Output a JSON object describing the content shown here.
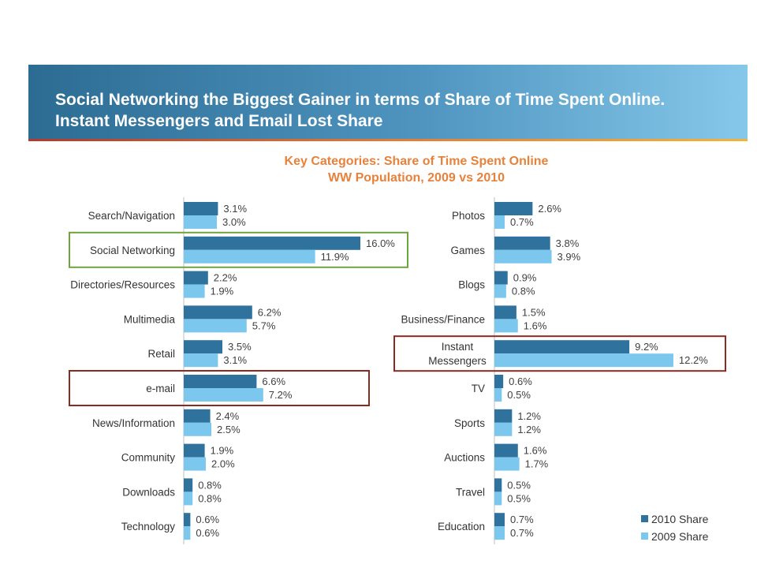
{
  "header": {
    "title_line_1": "Social Networking the Biggest Gainer in terms of Share of Time Spent Online.",
    "title_line_2": "Instant Messengers and Email Lost Share"
  },
  "colors": {
    "series_2010": "#2f729d",
    "series_2009": "#7cc7ee",
    "highlight_green": "#6ea43c",
    "highlight_red": "#8b2a20"
  },
  "chart_data": [
    {
      "type": "bar",
      "orientation": "horizontal",
      "title": "Key Categories: Share of Time Spent Online",
      "subtitle": "WW Population, 2009 vs 2010",
      "unit": "%",
      "categories": [
        "Search/Navigation",
        "Social Networking",
        "Directories/Resources",
        "Multimedia",
        "Retail",
        "e-mail",
        "News/Information",
        "Community",
        "Downloads",
        "Technology"
      ],
      "series": [
        {
          "name": "2010 Share",
          "values": [
            3.1,
            16.0,
            2.2,
            6.2,
            3.5,
            6.6,
            2.4,
            1.9,
            0.8,
            0.6
          ]
        },
        {
          "name": "2009 Share",
          "values": [
            3.0,
            11.9,
            1.9,
            5.7,
            3.1,
            7.2,
            2.5,
            2.0,
            0.8,
            0.6
          ]
        }
      ],
      "highlighted": [
        {
          "category": "Social Networking",
          "color": "green"
        },
        {
          "category": "e-mail",
          "color": "red"
        }
      ]
    },
    {
      "type": "bar",
      "orientation": "horizontal",
      "unit": "%",
      "categories": [
        "Photos",
        "Games",
        "Blogs",
        "Business/Finance",
        "Instant Messengers",
        "TV",
        "Sports",
        "Auctions",
        "Travel",
        "Education"
      ],
      "series": [
        {
          "name": "2010 Share",
          "values": [
            2.6,
            3.8,
            0.9,
            1.5,
            9.2,
            0.6,
            1.2,
            1.6,
            0.5,
            0.7
          ]
        },
        {
          "name": "2009 Share",
          "values": [
            0.7,
            3.9,
            0.8,
            1.6,
            12.2,
            0.5,
            1.2,
            1.7,
            0.5,
            0.7
          ]
        }
      ],
      "highlighted": [
        {
          "category": "Instant Messengers",
          "color": "red"
        }
      ],
      "legend": {
        "position": "bottom-right",
        "entries": [
          "2010 Share",
          "2009 Share"
        ]
      }
    }
  ]
}
